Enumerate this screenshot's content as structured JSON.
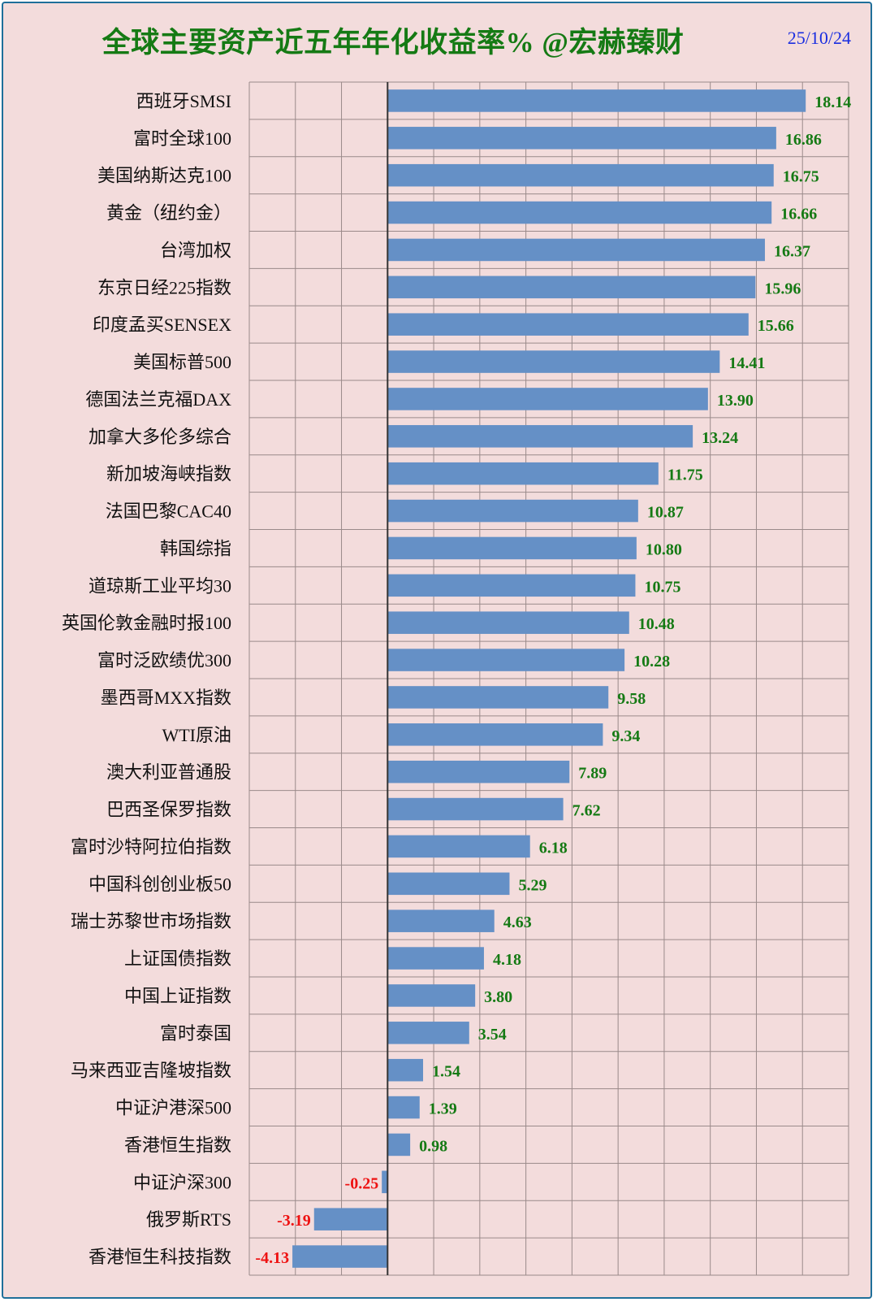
{
  "title": "全球主要资产近五年年化收益率% @宏赫臻财",
  "date": "25/10/24",
  "colors": {
    "bar": "#6590c6",
    "positive_label": "#157a14",
    "negative_label": "#ee1111",
    "grid": "#9a8a8a",
    "axis": "#333333"
  },
  "chart_data": {
    "type": "bar",
    "orientation": "horizontal",
    "title": "全球主要资产近五年年化收益率% @宏赫臻财",
    "xlim": [
      -6,
      20
    ],
    "grid": true,
    "categories": [
      "西班牙SMSI",
      "富时全球100",
      "美国纳斯达克100",
      "黄金（纽约金）",
      "台湾加权",
      "东京日经225指数",
      "印度孟买SENSEX",
      "美国标普500",
      "德国法兰克福DAX",
      "加拿大多伦多综合",
      "新加坡海峡指数",
      "法国巴黎CAC40",
      "韩国综指",
      "道琼斯工业平均30",
      "英国伦敦金融时报100",
      "富时泛欧绩优300",
      "墨西哥MXX指数",
      "WTI原油",
      "澳大利亚普通股",
      "巴西圣保罗指数",
      "富时沙特阿拉伯指数",
      "中国科创创业板50",
      "瑞士苏黎世市场指数",
      "上证国债指数",
      "中国上证指数",
      "富时泰国",
      "马来西亚吉隆坡指数",
      "中证沪港深500",
      "香港恒生指数",
      "中证沪深300",
      "俄罗斯RTS",
      "香港恒生科技指数"
    ],
    "values": [
      18.14,
      16.86,
      16.75,
      16.66,
      16.37,
      15.96,
      15.66,
      14.41,
      13.9,
      13.24,
      11.75,
      10.87,
      10.8,
      10.75,
      10.48,
      10.28,
      9.58,
      9.34,
      7.89,
      7.62,
      6.18,
      5.29,
      4.63,
      4.18,
      3.8,
      3.54,
      1.54,
      1.39,
      0.98,
      -0.25,
      -3.19,
      -4.13
    ],
    "labels": [
      "18.14",
      "16.86",
      "16.75",
      "16.66",
      "16.37",
      "15.96",
      "15.66",
      "14.41",
      "13.90",
      "13.24",
      "11.75",
      "10.87",
      "10.80",
      "10.75",
      "10.48",
      "10.28",
      "9.58",
      "9.34",
      "7.89",
      "7.62",
      "6.18",
      "5.29",
      "4.63",
      "4.18",
      "3.80",
      "3.54",
      "1.54",
      "1.39",
      "0.98",
      "-0.25",
      "-3.19",
      "-4.13"
    ]
  }
}
